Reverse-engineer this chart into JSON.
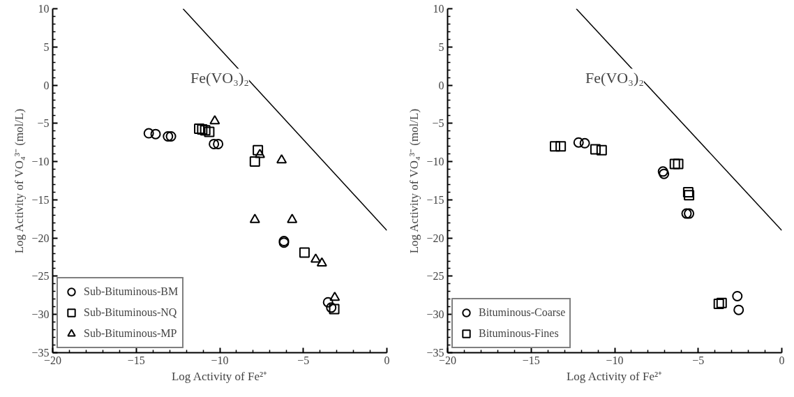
{
  "chart_data": [
    {
      "type": "scatter",
      "xlabel": "Log Activity of Fe²⁺",
      "ylabel": "Log Activity of VO₄³⁻ (mol/L)",
      "xlim": [
        -20,
        0
      ],
      "ylim": [
        -35,
        10
      ],
      "xticks": [
        -20,
        {
          "value": -19,
          "label": null
        },
        {
          "value": -18,
          "label": null
        },
        {
          "value": -17,
          "label": null
        },
        {
          "value": -16,
          "label": null
        },
        -15,
        {
          "value": -14,
          "label": null
        },
        {
          "value": -13,
          "label": null
        },
        {
          "value": -12,
          "label": null
        },
        {
          "value": -11,
          "label": null
        },
        -10,
        {
          "value": -9,
          "label": null
        },
        {
          "value": -8,
          "label": null
        },
        {
          "value": -7,
          "label": null
        },
        {
          "value": -6,
          "label": null
        },
        -5,
        {
          "value": -4,
          "label": null
        },
        {
          "value": -3,
          "label": null
        },
        {
          "value": -2,
          "label": null
        },
        {
          "value": -1,
          "label": null
        },
        0
      ],
      "yticks": [
        -35,
        {
          "value": -34,
          "label": null
        },
        {
          "value": -33,
          "label": null
        },
        {
          "value": -32,
          "label": null
        },
        {
          "value": -31,
          "label": null
        },
        -30,
        {
          "value": -29,
          "label": null
        },
        {
          "value": -28,
          "label": null
        },
        {
          "value": -27,
          "label": null
        },
        {
          "value": -26,
          "label": null
        },
        -25,
        {
          "value": -24,
          "label": null
        },
        {
          "value": -23,
          "label": null
        },
        {
          "value": -22,
          "label": null
        },
        {
          "value": -21,
          "label": null
        },
        -20,
        {
          "value": -19,
          "label": null
        },
        {
          "value": -18,
          "label": null
        },
        {
          "value": -17,
          "label": null
        },
        {
          "value": -16,
          "label": null
        },
        -15,
        {
          "value": -14,
          "label": null
        },
        {
          "value": -13,
          "label": null
        },
        {
          "value": -12,
          "label": null
        },
        {
          "value": -11,
          "label": null
        },
        -10,
        {
          "value": -9,
          "label": null
        },
        {
          "value": -8,
          "label": null
        },
        {
          "value": -7,
          "label": null
        },
        {
          "value": -6,
          "label": null
        },
        -5,
        {
          "value": -4,
          "label": null
        },
        {
          "value": -3,
          "label": null
        },
        {
          "value": -2,
          "label": null
        },
        {
          "value": -1,
          "label": null
        },
        0,
        {
          "value": 1,
          "label": null
        },
        {
          "value": 2,
          "label": null
        },
        {
          "value": 3,
          "label": null
        },
        {
          "value": 4,
          "label": null
        },
        5,
        {
          "value": 6,
          "label": null
        },
        {
          "value": 7,
          "label": null
        },
        {
          "value": 8,
          "label": null
        },
        {
          "value": 9,
          "label": null
        },
        10
      ],
      "grid": false,
      "legend": "bottom left",
      "annotations": [
        "Fe(VO₃)₂"
      ],
      "series": [
        {
          "name": "Sub-Bituminous-BM",
          "color": "#000000",
          "marker": "circle",
          "x": [
            -14.25,
            -13.84,
            -13.1,
            -12.92,
            -10.35,
            -10.1,
            -6.16,
            -6.16,
            -3.52,
            -3.33
          ],
          "values": [
            -6.3,
            -6.4,
            -6.7,
            -6.7,
            -7.7,
            -7.7,
            -20.4,
            -20.6,
            -28.4,
            -29.1
          ]
        },
        {
          "name": "Sub-Bituminous-NQ",
          "color": "#000000",
          "marker": "square",
          "x": [
            -11.23,
            -11.05,
            -10.87,
            -10.63,
            -7.72,
            -7.9,
            -4.93,
            -3.15
          ],
          "values": [
            -5.7,
            -5.8,
            -5.9,
            -6.1,
            -8.5,
            -10.0,
            -21.9,
            -29.3
          ]
        },
        {
          "name": "Sub-Bituminous-MP",
          "color": "#000000",
          "marker": "triangle",
          "x": [
            -10.3,
            -7.6,
            -6.3,
            -7.9,
            -5.67,
            -4.26,
            -3.89,
            -3.12
          ],
          "values": [
            -4.7,
            -9.1,
            -9.8,
            -17.6,
            -17.6,
            -22.8,
            -23.3,
            -27.8
          ]
        },
        {
          "type": "line",
          "color": "#000000",
          "x": [
            -12.2,
            0
          ],
          "values": [
            10,
            -19
          ]
        }
      ]
    },
    {
      "type": "scatter",
      "xlabel": "Log Activity of Fe²⁺",
      "ylabel": "Log Activity of VO₄³⁻ (mol/L)",
      "xlim": [
        -20,
        0
      ],
      "ylim": [
        -35,
        10
      ],
      "xticks": [
        -20,
        {
          "value": -19,
          "label": null
        },
        {
          "value": -18,
          "label": null
        },
        {
          "value": -17,
          "label": null
        },
        {
          "value": -16,
          "label": null
        },
        -15,
        {
          "value": -14,
          "label": null
        },
        {
          "value": -13,
          "label": null
        },
        {
          "value": -12,
          "label": null
        },
        {
          "value": -11,
          "label": null
        },
        -10,
        {
          "value": -9,
          "label": null
        },
        {
          "value": -8,
          "label": null
        },
        {
          "value": -7,
          "label": null
        },
        {
          "value": -6,
          "label": null
        },
        -5,
        {
          "value": -4,
          "label": null
        },
        {
          "value": -3,
          "label": null
        },
        {
          "value": -2,
          "label": null
        },
        {
          "value": -1,
          "label": null
        },
        0
      ],
      "yticks": [
        -35,
        {
          "value": -34,
          "label": null
        },
        {
          "value": -33,
          "label": null
        },
        {
          "value": -32,
          "label": null
        },
        {
          "value": -31,
          "label": null
        },
        -30,
        {
          "value": -29,
          "label": null
        },
        {
          "value": -28,
          "label": null
        },
        {
          "value": -27,
          "label": null
        },
        {
          "value": -26,
          "label": null
        },
        -25,
        {
          "value": -24,
          "label": null
        },
        {
          "value": -23,
          "label": null
        },
        {
          "value": -22,
          "label": null
        },
        {
          "value": -21,
          "label": null
        },
        -20,
        {
          "value": -19,
          "label": null
        },
        {
          "value": -18,
          "label": null
        },
        {
          "value": -17,
          "label": null
        },
        {
          "value": -16,
          "label": null
        },
        -15,
        {
          "value": -14,
          "label": null
        },
        {
          "value": -13,
          "label": null
        },
        {
          "value": -12,
          "label": null
        },
        {
          "value": -11,
          "label": null
        },
        -10,
        {
          "value": -9,
          "label": null
        },
        {
          "value": -8,
          "label": null
        },
        {
          "value": -7,
          "label": null
        },
        {
          "value": -6,
          "label": null
        },
        -5,
        {
          "value": -4,
          "label": null
        },
        {
          "value": -3,
          "label": null
        },
        {
          "value": -2,
          "label": null
        },
        {
          "value": -1,
          "label": null
        },
        0,
        {
          "value": 1,
          "label": null
        },
        {
          "value": 2,
          "label": null
        },
        {
          "value": 3,
          "label": null
        },
        {
          "value": 4,
          "label": null
        },
        5,
        {
          "value": 6,
          "label": null
        },
        {
          "value": 7,
          "label": null
        },
        {
          "value": 8,
          "label": null
        },
        {
          "value": 9,
          "label": null
        },
        10
      ],
      "grid": false,
      "legend": "bottom left",
      "annotations": [
        "Fe(VO₃)₂"
      ],
      "series": [
        {
          "name": "Bituminous-Coarse",
          "color": "#000000",
          "marker": "circle",
          "x": [
            -12.16,
            -11.79,
            -7.11,
            -7.05,
            -5.7,
            -5.55,
            -2.66,
            -2.58
          ],
          "values": [
            -7.5,
            -7.6,
            -11.3,
            -11.6,
            -16.8,
            -16.8,
            -27.6,
            -29.4
          ]
        },
        {
          "name": "Bituminous-Fines",
          "color": "#000000",
          "marker": "square",
          "x": [
            -13.57,
            -13.23,
            -11.15,
            -10.78,
            -6.4,
            -6.2,
            -5.6,
            -5.55,
            -3.77,
            -3.6
          ],
          "values": [
            -8.0,
            -8.0,
            -8.4,
            -8.5,
            -10.3,
            -10.3,
            -14.0,
            -14.4,
            -28.6,
            -28.5
          ]
        },
        {
          "type": "line",
          "color": "#000000",
          "x": [
            -12.3,
            0
          ],
          "values": [
            10,
            -19
          ]
        }
      ]
    }
  ]
}
